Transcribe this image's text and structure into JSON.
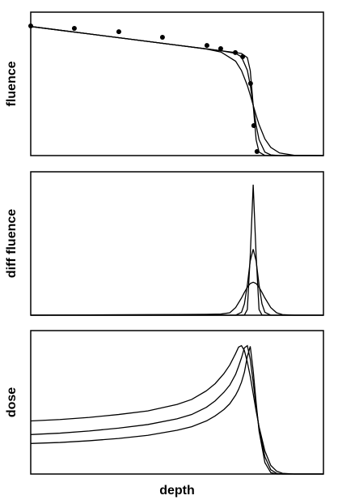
{
  "chart_data": [
    {
      "type": "line",
      "ylabel": "fluence",
      "xlim": [
        0,
        100
      ],
      "ylim": [
        0,
        100
      ],
      "x": [
        0,
        10,
        20,
        30,
        40,
        50,
        60,
        65,
        70,
        72,
        74,
        75,
        76,
        77,
        78,
        80,
        82,
        85,
        90,
        100
      ],
      "series": [
        {
          "color": "#000000",
          "values": [
            90,
            87.4,
            84.8,
            82.2,
            79.6,
            77,
            74.4,
            73.1,
            71.8,
            71.2,
            68.3,
            59.3,
            35.1,
            11.1,
            2.4,
            0.1,
            0,
            0,
            0,
            0
          ]
        },
        {
          "color": "#000000",
          "values": [
            90,
            87.4,
            84.8,
            82.2,
            79.6,
            77,
            74.4,
            73.1,
            71.3,
            68.8,
            59.5,
            49.1,
            35.1,
            21.2,
            11.1,
            2.4,
            0.5,
            0,
            0,
            0
          ]
        },
        {
          "color": "#000000",
          "values": [
            90,
            87.4,
            84.8,
            82.2,
            79.6,
            77,
            74.3,
            72.2,
            65.8,
            59.3,
            48.9,
            42.2,
            35.1,
            28.1,
            21.6,
            11.6,
            5.7,
            1.8,
            0.2,
            0
          ]
        }
      ],
      "points": {
        "color": "#000000",
        "x": [
          0,
          14.9,
          30.1,
          45,
          60.2,
          64.9,
          69.9,
          72.4,
          75.1,
          76.2,
          77.3
        ],
        "values": [
          90.4,
          88.7,
          86.4,
          82.5,
          76.8,
          74.6,
          71.8,
          68.9,
          50.3,
          20.9,
          2.8
        ]
      }
    },
    {
      "type": "line",
      "ylabel": "diff fluence",
      "xlim": [
        0,
        100
      ],
      "ylim": [
        0,
        100
      ],
      "x": [
        0,
        20,
        40,
        50,
        60,
        65,
        68,
        70,
        72,
        73,
        74,
        75,
        76,
        77,
        78,
        79,
        80,
        82,
        84,
        86,
        90,
        100
      ],
      "series": [
        {
          "color": "#000000",
          "values": [
            0,
            0,
            0,
            0,
            0,
            0,
            0,
            0,
            0,
            0.1,
            4,
            41.7,
            91,
            41.7,
            4,
            0.1,
            0,
            0,
            0,
            0,
            0,
            0
          ]
        },
        {
          "color": "#000000",
          "values": [
            0,
            0,
            0,
            0,
            0,
            0,
            0,
            0,
            2,
            7.9,
            21.1,
            37.9,
            46,
            37.9,
            21.1,
            7.9,
            2,
            0,
            0,
            0,
            0,
            0
          ]
        },
        {
          "color": "#000000",
          "values": [
            0,
            0.2,
            0.4,
            0.5,
            0.6,
            0.8,
            1.7,
            5.3,
            12,
            15.9,
            19.5,
            22.1,
            23,
            22.1,
            19.5,
            15.9,
            12,
            5.3,
            1.7,
            0.4,
            0,
            0
          ]
        }
      ]
    },
    {
      "type": "line",
      "ylabel": "dose",
      "xlabel": "depth",
      "xlim": [
        0,
        100
      ],
      "ylim": [
        0,
        100
      ],
      "x": [
        0,
        10,
        20,
        30,
        40,
        50,
        55,
        60,
        63,
        66,
        68,
        70,
        71,
        72,
        73,
        74,
        75,
        76,
        77,
        78,
        80,
        82,
        84,
        86,
        90,
        100
      ],
      "series": [
        {
          "color": "#000000",
          "values": [
            37,
            38,
            39.5,
            41.5,
            44,
            48.5,
            52,
            58,
            63,
            70,
            76,
            84,
            88.5,
            89.5,
            86,
            78,
            68,
            56,
            44,
            33,
            16,
            6,
            2,
            0.5,
            0,
            0
          ]
        },
        {
          "color": "#000000",
          "values": [
            27.5,
            28.5,
            30,
            32,
            34.5,
            38.5,
            41.5,
            46.5,
            51,
            57,
            62,
            69.5,
            75,
            81,
            88,
            89.5,
            80,
            64,
            47,
            32,
            12,
            3,
            0.5,
            0,
            0,
            0
          ]
        },
        {
          "color": "#000000",
          "values": [
            21.3,
            22,
            23.2,
            24.8,
            27,
            30.5,
            33,
            37,
            40.5,
            45,
            49,
            55,
            59,
            64,
            71,
            82,
            89,
            72,
            50,
            30,
            8,
            1,
            0,
            0,
            0,
            0
          ]
        }
      ]
    }
  ]
}
